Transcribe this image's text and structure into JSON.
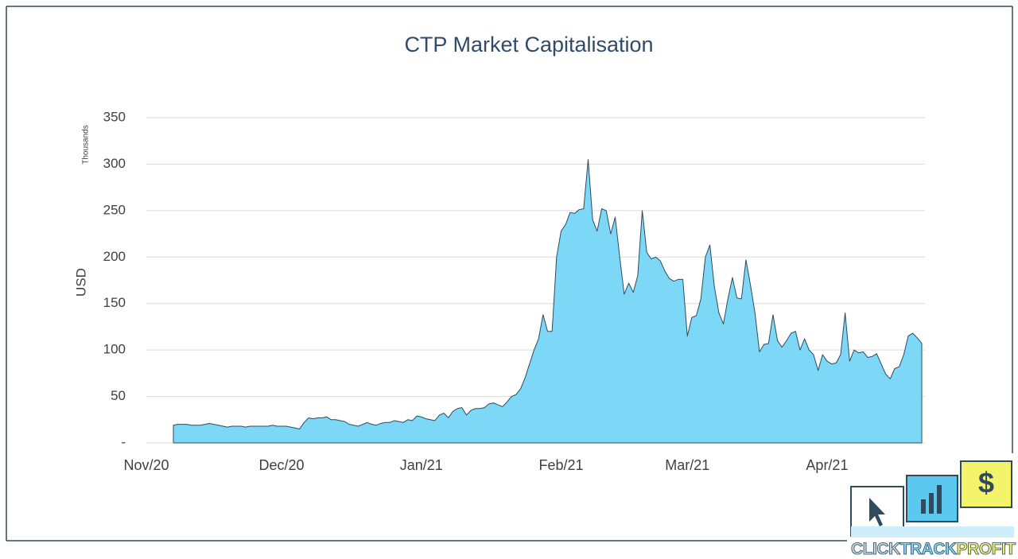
{
  "chart_data": {
    "type": "area",
    "title": "CTP Market Capitalisation",
    "ylabel": "USD",
    "yunit": "Thousands",
    "color": "#7dd8f8",
    "line_color": "#2f4b5c",
    "categories": [
      "Nov/20",
      null,
      null,
      null,
      null,
      null,
      null,
      null,
      null,
      null,
      null,
      null,
      null,
      null,
      null,
      null,
      null,
      null,
      null,
      null,
      null,
      null,
      null,
      null,
      null,
      null,
      null,
      null,
      null,
      null,
      "Dec/20",
      null,
      null,
      null,
      null,
      null,
      null,
      null,
      null,
      null,
      null,
      null,
      null,
      null,
      null,
      null,
      null,
      null,
      null,
      null,
      null,
      null,
      null,
      null,
      null,
      null,
      null,
      null,
      null,
      null,
      null,
      "Jan/21",
      null,
      null,
      null,
      null,
      null,
      null,
      null,
      null,
      null,
      null,
      null,
      null,
      null,
      null,
      null,
      null,
      null,
      null,
      null,
      null,
      null,
      null,
      null,
      null,
      null,
      null,
      null,
      null,
      null,
      null,
      "Feb/21",
      null,
      null,
      null,
      null,
      null,
      null,
      null,
      null,
      null,
      null,
      null,
      null,
      null,
      null,
      null,
      null,
      null,
      null,
      null,
      null,
      null,
      null,
      null,
      null,
      null,
      null,
      null,
      "Mar/21",
      null,
      null,
      null,
      null,
      null,
      null,
      null,
      null,
      null,
      null,
      null,
      null,
      null,
      null,
      null,
      null,
      null,
      null,
      null,
      null,
      null,
      null,
      null,
      null,
      null,
      null,
      null,
      null,
      null,
      null,
      "Apr/21",
      null,
      null,
      null,
      null,
      null,
      null,
      null,
      null,
      null,
      null,
      null,
      null,
      null,
      null,
      null,
      null,
      null,
      null,
      null,
      null,
      null
    ],
    "values": [
      null,
      null,
      null,
      null,
      null,
      null,
      19,
      20,
      20,
      20,
      19,
      19,
      19,
      20,
      21,
      20,
      19,
      18,
      17,
      18,
      18,
      18,
      17,
      18,
      18,
      18,
      18,
      18,
      19,
      18,
      18,
      18,
      17,
      16,
      15,
      22,
      27,
      26,
      27,
      27,
      28,
      25,
      25,
      24,
      23,
      20,
      19,
      18,
      20,
      22,
      20,
      19,
      21,
      22,
      22,
      24,
      23,
      22,
      25,
      24,
      29,
      28,
      26,
      25,
      24,
      30,
      32,
      27,
      34,
      37,
      38,
      30,
      35,
      37,
      37,
      38,
      42,
      43,
      41,
      39,
      44,
      50,
      52,
      58,
      70,
      85,
      100,
      112,
      138,
      120,
      120,
      200,
      228,
      235,
      248,
      247,
      251,
      252,
      305,
      240,
      228,
      252,
      250,
      225,
      243,
      200,
      160,
      172,
      162,
      180,
      250,
      205,
      198,
      200,
      196,
      185,
      177,
      174,
      176,
      176,
      115,
      135,
      137,
      155,
      200,
      213,
      168,
      140,
      128,
      155,
      178,
      156,
      155,
      197,
      170,
      140,
      98,
      106,
      107,
      138,
      110,
      103,
      110,
      118,
      120,
      100,
      112,
      100,
      95,
      78,
      95,
      88,
      85,
      86,
      95,
      140,
      88,
      100,
      97,
      98,
      92,
      93,
      96,
      85,
      74,
      69,
      80,
      82,
      95,
      115,
      118,
      113,
      107
    ],
    "ylim": [
      0,
      350
    ],
    "yticks": [
      {
        "value": 0,
        "label": "-"
      },
      50,
      100,
      150,
      200,
      250,
      300,
      350
    ],
    "grid": true
  },
  "logo": {
    "words": [
      "CLICK",
      "TRACK",
      "PROFIT"
    ]
  }
}
